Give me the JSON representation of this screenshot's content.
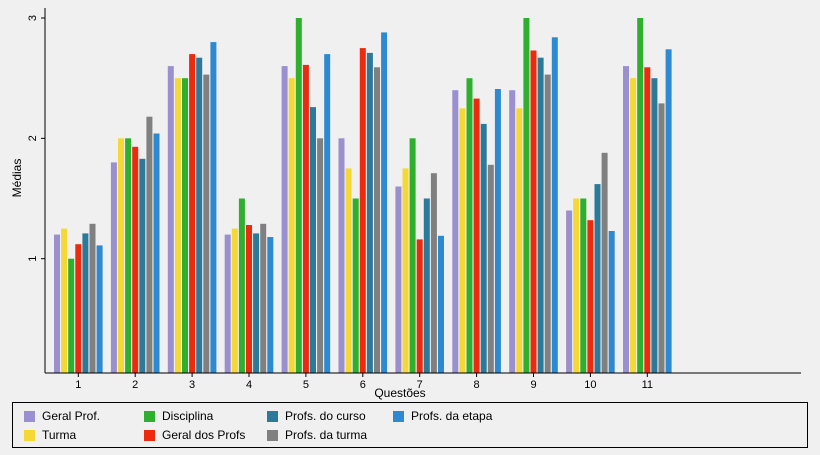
{
  "chart_data": {
    "type": "bar",
    "xlabel": "Questões",
    "ylabel": "Médias",
    "ylim": [
      0.05,
      3.05
    ],
    "yticks": [
      1,
      2,
      3
    ],
    "categories": [
      "1",
      "2",
      "3",
      "4",
      "5",
      "6",
      "7",
      "8",
      "9",
      "10",
      "11"
    ],
    "legend_position": "bottom",
    "series": [
      {
        "name": "Geral Prof.",
        "color": "#9a8fcf",
        "values": [
          1.2,
          1.8,
          2.6,
          1.2,
          2.6,
          2.0,
          1.6,
          2.4,
          2.4,
          1.4,
          2.6
        ]
      },
      {
        "name": "Turma",
        "color": "#f4d835",
        "values": [
          1.25,
          2.0,
          2.5,
          1.25,
          2.5,
          1.75,
          1.75,
          2.25,
          2.25,
          1.5,
          2.5
        ]
      },
      {
        "name": "Disciplina",
        "color": "#2eb02e",
        "values": [
          1.0,
          2.0,
          2.5,
          1.5,
          3.0,
          1.5,
          2.0,
          2.5,
          3.0,
          1.5,
          3.0
        ]
      },
      {
        "name": "Geral dos Profs",
        "color": "#ee2a0e",
        "values": [
          1.12,
          1.93,
          2.7,
          1.28,
          2.61,
          2.75,
          1.16,
          2.33,
          2.73,
          1.32,
          2.59
        ]
      },
      {
        "name": "Profs. do curso",
        "color": "#2b7a9a",
        "values": [
          1.21,
          1.83,
          2.67,
          1.21,
          2.26,
          2.71,
          1.5,
          2.12,
          2.67,
          1.62,
          2.5
        ]
      },
      {
        "name": "Profs. da turma",
        "color": "#808080",
        "values": [
          1.29,
          2.18,
          2.53,
          1.29,
          2.0,
          2.59,
          1.71,
          1.78,
          2.53,
          1.88,
          2.29
        ]
      },
      {
        "name": "Profs. da etapa",
        "color": "#2d8ad0",
        "values": [
          1.11,
          2.04,
          2.8,
          1.18,
          2.7,
          2.88,
          1.19,
          2.41,
          2.84,
          1.23,
          2.74
        ]
      }
    ]
  }
}
